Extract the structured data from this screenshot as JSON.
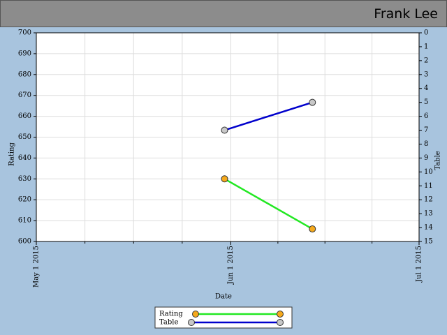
{
  "header": {
    "user": "Frank Lee"
  },
  "chart_data": {
    "type": "line",
    "x": [
      "2015-05-31",
      "2015-06-14"
    ],
    "xlim": [
      "2015-05-01",
      "2015-07-01"
    ],
    "xticks": [
      {
        "value": "2015-05-01",
        "label": "May 1 2015"
      },
      {
        "value": "2015-06-01",
        "label": "Jun 1 2015"
      },
      {
        "value": "2015-07-01",
        "label": "Jul 1 2015"
      }
    ],
    "minor_ticks": 4,
    "xlabel": "Date",
    "ylabel": "Rating",
    "y2label": "Table",
    "ylim": [
      600,
      700
    ],
    "yticks": [
      600,
      610,
      620,
      630,
      640,
      650,
      660,
      670,
      680,
      690,
      700
    ],
    "y2lim": [
      15,
      0
    ],
    "y2ticks": [
      0,
      1,
      2,
      3,
      4,
      5,
      6,
      7,
      8,
      9,
      10,
      11,
      12,
      13,
      14,
      15
    ],
    "grid": true,
    "legend": "bottom",
    "series": [
      {
        "name": "Rating",
        "color": "#22e822",
        "marker_color": "#f5a91c",
        "values": [
          630,
          606
        ]
      },
      {
        "name": "Table",
        "color": "#0000cc",
        "marker_color": "#c8c8c8",
        "values": [
          7,
          5
        ],
        "axis": "y2"
      }
    ]
  }
}
